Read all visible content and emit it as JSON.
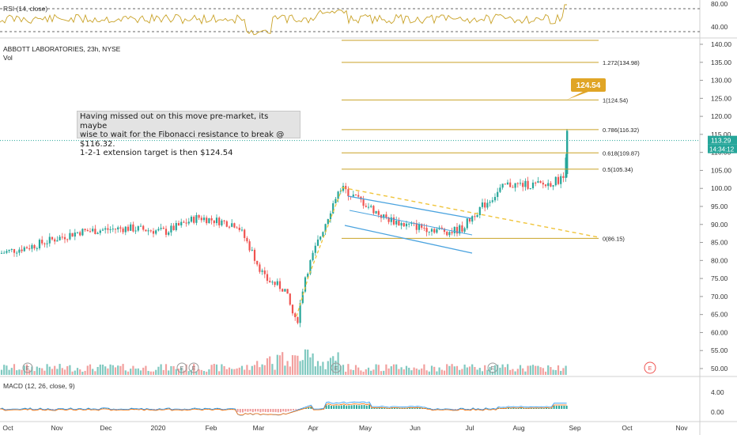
{
  "chart_data": {
    "type": "candlestick",
    "title": "ABBOTT LABORATORIES, 23h, NYSE",
    "volume_label": "Vol",
    "rsi_label": "RSI (14, close)",
    "macd_label": "MACD (12, 26, close, 9)",
    "annotation": [
      "Having missed out on this move pre-market, its maybe",
      "wise to wait for the Fibonacci resistance to break @ $116.32.",
      "1-2-1 extension target is then $124.54"
    ],
    "price_axis": {
      "ticks": [
        "140.00",
        "135.00",
        "130.00",
        "125.00",
        "120.00",
        "115.00",
        "110.00",
        "105.00",
        "100.00",
        "95.00",
        "90.00",
        "85.00",
        "80.00",
        "75.00",
        "70.00",
        "65.00",
        "60.00",
        "55.00",
        "50.00"
      ],
      "ylim": [
        48,
        142
      ]
    },
    "rsi_axis": {
      "ticks": [
        "80.00",
        "40.00"
      ]
    },
    "macd_axis": {
      "ticks": [
        "4.00",
        "0.00"
      ]
    },
    "x_labels": [
      "Oct",
      "Nov",
      "Dec",
      "2020",
      "Feb",
      "Mar",
      "Apr",
      "May",
      "Jun",
      "Jul",
      "Aug",
      "Sep",
      "Oct",
      "Nov"
    ],
    "last_price": "113.29",
    "countdown": "14:34:12",
    "target_badge": "124.54",
    "fib_levels": [
      {
        "label": "1.272(134.98)",
        "value": 134.98
      },
      {
        "label": "1(124.54)",
        "value": 124.54
      },
      {
        "label": "0.786(116.32)",
        "value": 116.32
      },
      {
        "label": "0.618(109.87)",
        "value": 109.87
      },
      {
        "label": "0.5(105.34)",
        "value": 105.34
      },
      {
        "label": "0(86.15)",
        "value": 86.15
      }
    ],
    "earnings_marker": "E",
    "colors": {
      "up": "#26a69a",
      "down": "#ef5350",
      "fib": "#c9a227",
      "badge": "#e0a526",
      "trend": "#f0c43a",
      "channel": "#4aa3df",
      "rsi": "#c9a227",
      "macd": "#2196f3",
      "signal": "#ff6d00"
    }
  }
}
